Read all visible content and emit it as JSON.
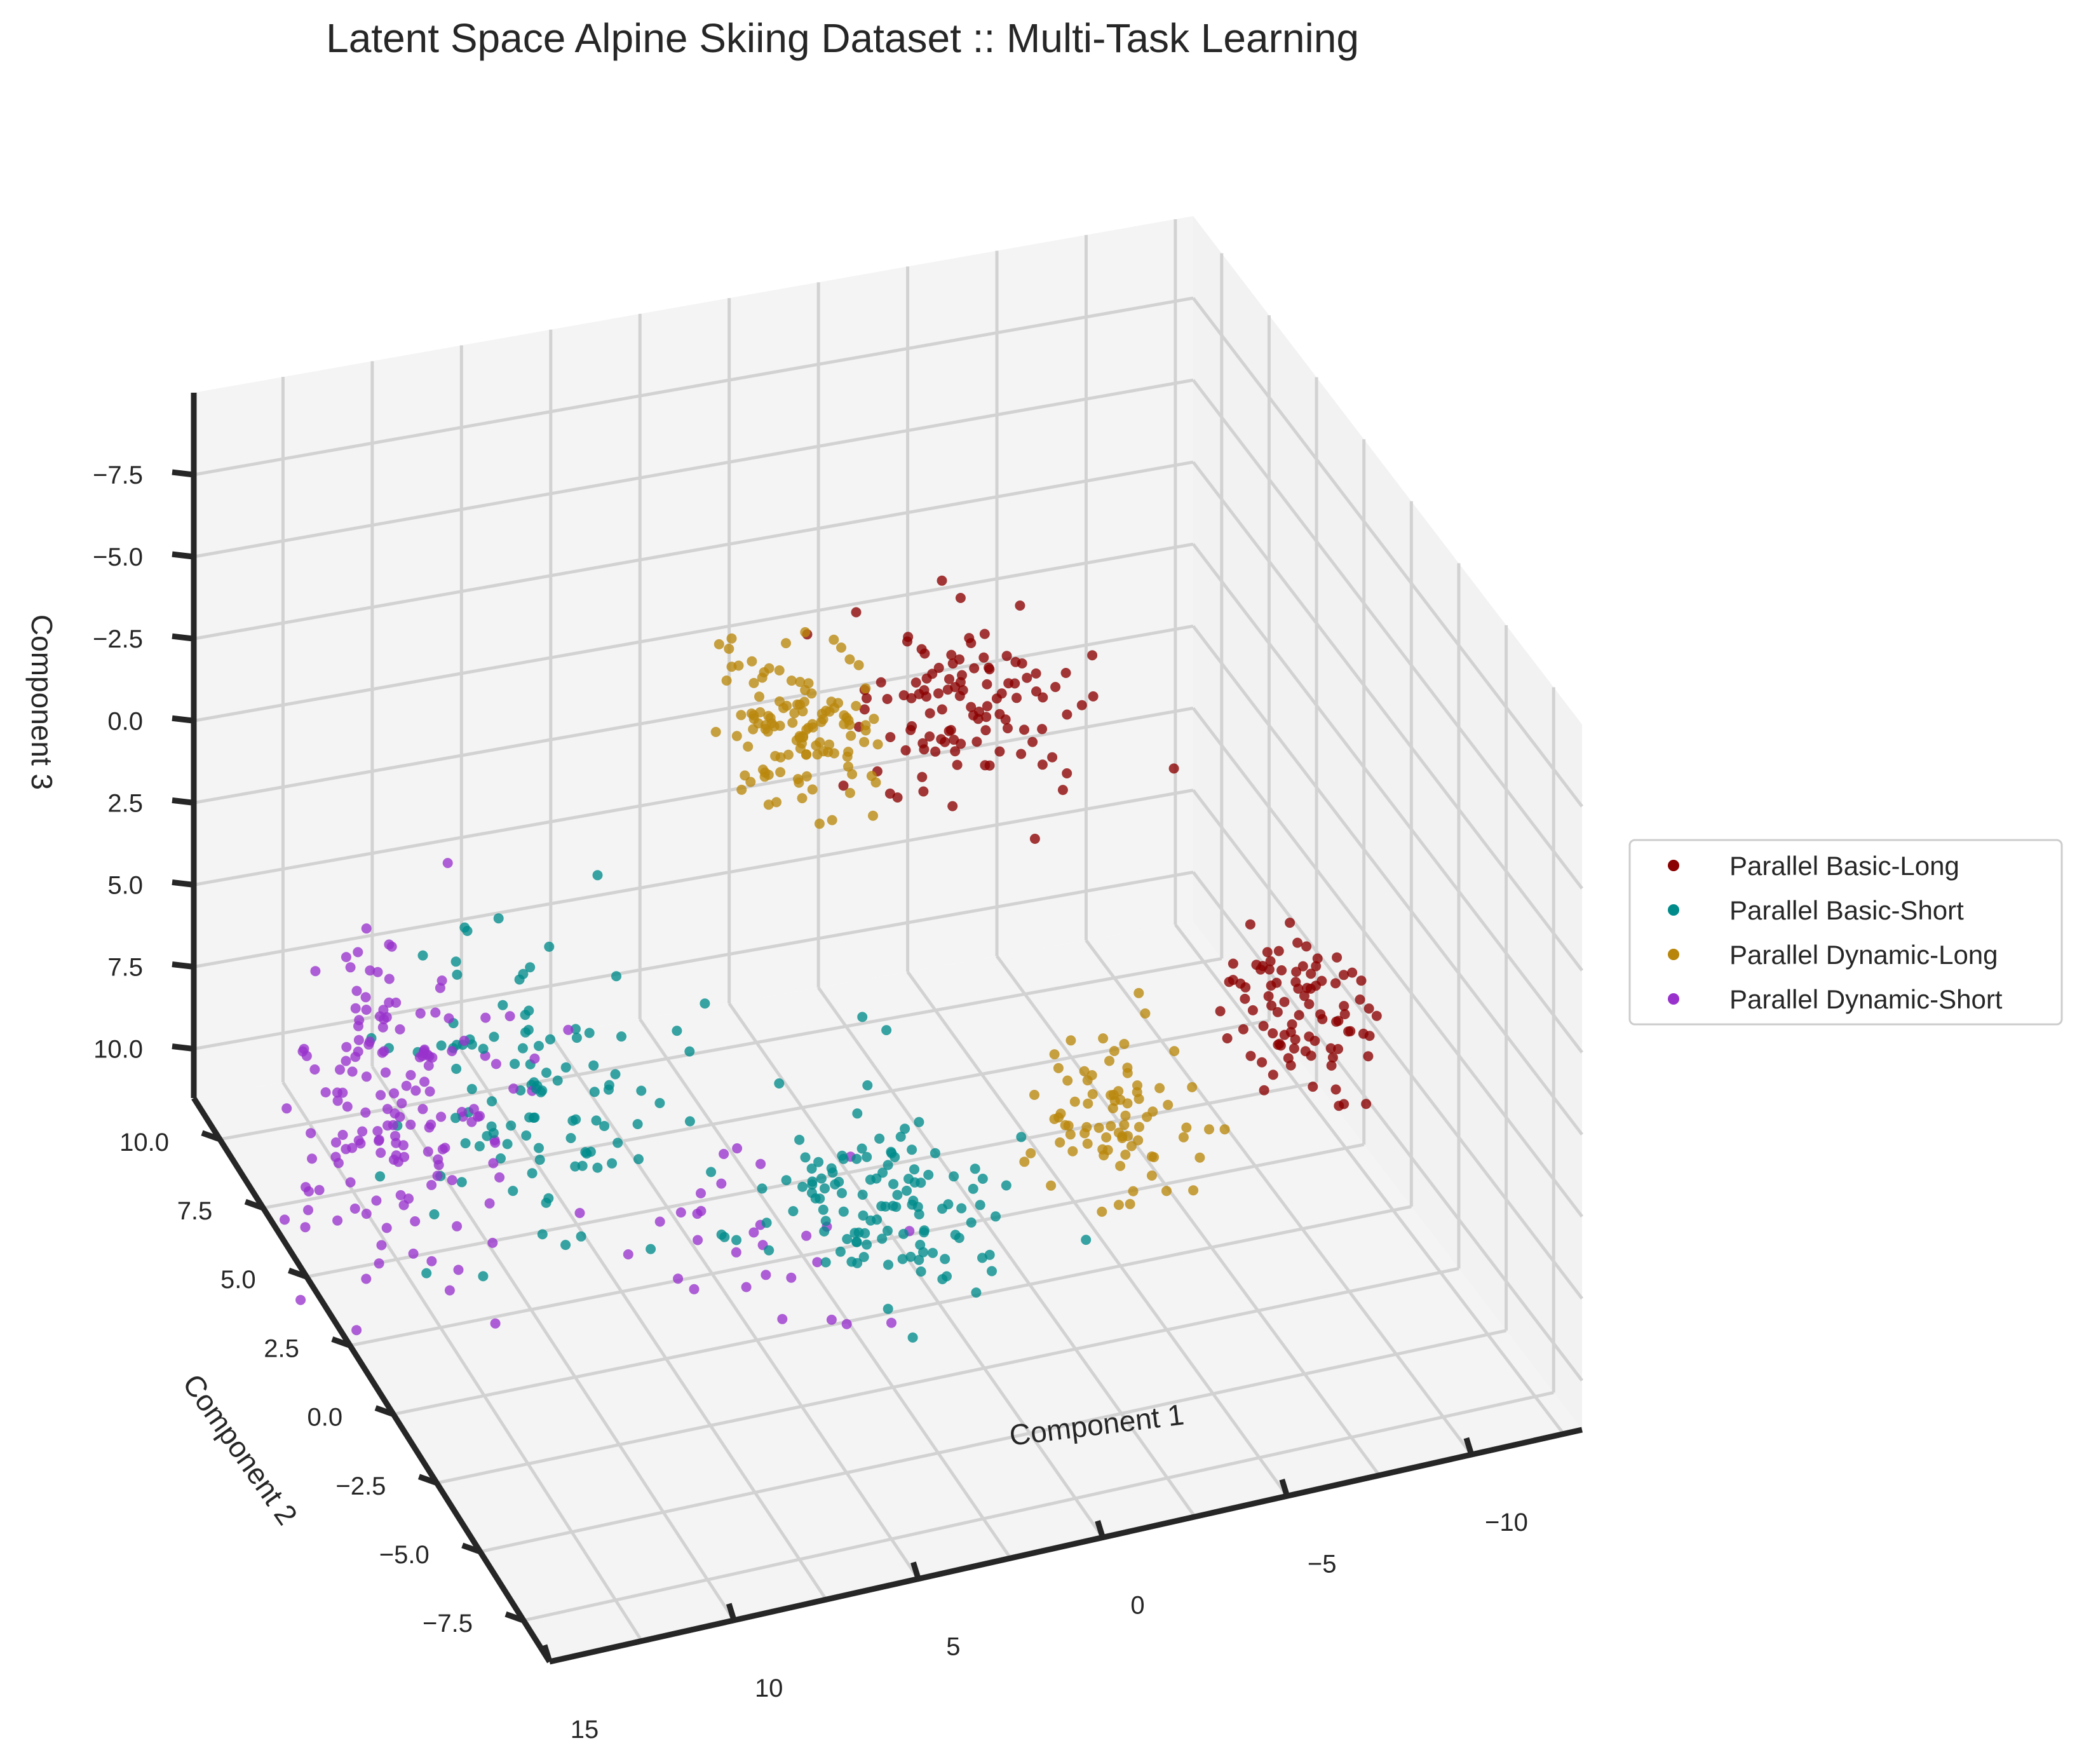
{
  "chart_data": {
    "type": "scatter3d",
    "title": "Latent Space Alpine Skiing Dataset :: Multi-Task Learning",
    "xlabel": "Component 1",
    "ylabel": "Component 2",
    "zlabel": "Component 3",
    "xlim": [
      -13,
      15
    ],
    "ylim": [
      -9,
      11.5
    ],
    "zlim": [
      -10,
      11.5
    ],
    "zinverted": true,
    "x_ticks": [
      "−10",
      "−5",
      "0",
      "5",
      "10",
      "15"
    ],
    "y_ticks": [
      "−7.5",
      "−5.0",
      "−2.5",
      "0.0",
      "2.5",
      "5.0",
      "7.5",
      "10.0"
    ],
    "z_ticks": [
      "−7.5",
      "−5.0",
      "−2.5",
      "0.0",
      "2.5",
      "5.0",
      "7.5",
      "10.0"
    ],
    "grid": true,
    "legend_position": "right",
    "series": [
      {
        "name": "Parallel Basic-Long",
        "color": "#8b0000",
        "clusters": [
          {
            "center": [
              -9.5,
              -1.0,
              4.0
            ],
            "spread": [
              1.0,
              1.0,
              1.0
            ],
            "n": 90
          },
          {
            "center": [
              -3.0,
              5.0,
              -2.0
            ],
            "spread": [
              1.5,
              1.2,
              1.0
            ],
            "n": 110
          }
        ]
      },
      {
        "name": "Parallel Basic-Short",
        "color": "#008b8b",
        "clusters": [
          {
            "center": [
              4.5,
              -6.5,
              2.0
            ],
            "spread": [
              1.5,
              1.5,
              1.0
            ],
            "n": 120
          },
          {
            "center": [
              9.5,
              3.0,
              5.0
            ],
            "spread": [
              2.0,
              2.0,
              1.8
            ],
            "n": 110
          }
        ]
      },
      {
        "name": "Parallel Dynamic-Long",
        "color": "#b8860b",
        "clusters": [
          {
            "center": [
              -3.0,
              -3.5,
              3.5
            ],
            "spread": [
              1.0,
              1.0,
              1.0
            ],
            "n": 80
          },
          {
            "center": [
              1.5,
              4.5,
              -3.0
            ],
            "spread": [
              1.0,
              1.0,
              0.9
            ],
            "n": 120
          }
        ]
      },
      {
        "name": "Parallel Dynamic-Short",
        "color": "#9932cc",
        "clusters": [
          {
            "center": [
              7.0,
              -4.0,
              4.5
            ],
            "spread": [
              1.5,
              1.5,
              1.0
            ],
            "n": 30
          },
          {
            "center": [
              13.5,
              3.0,
              5.0
            ],
            "spread": [
              1.3,
              1.5,
              2.2
            ],
            "n": 160
          }
        ]
      }
    ]
  }
}
